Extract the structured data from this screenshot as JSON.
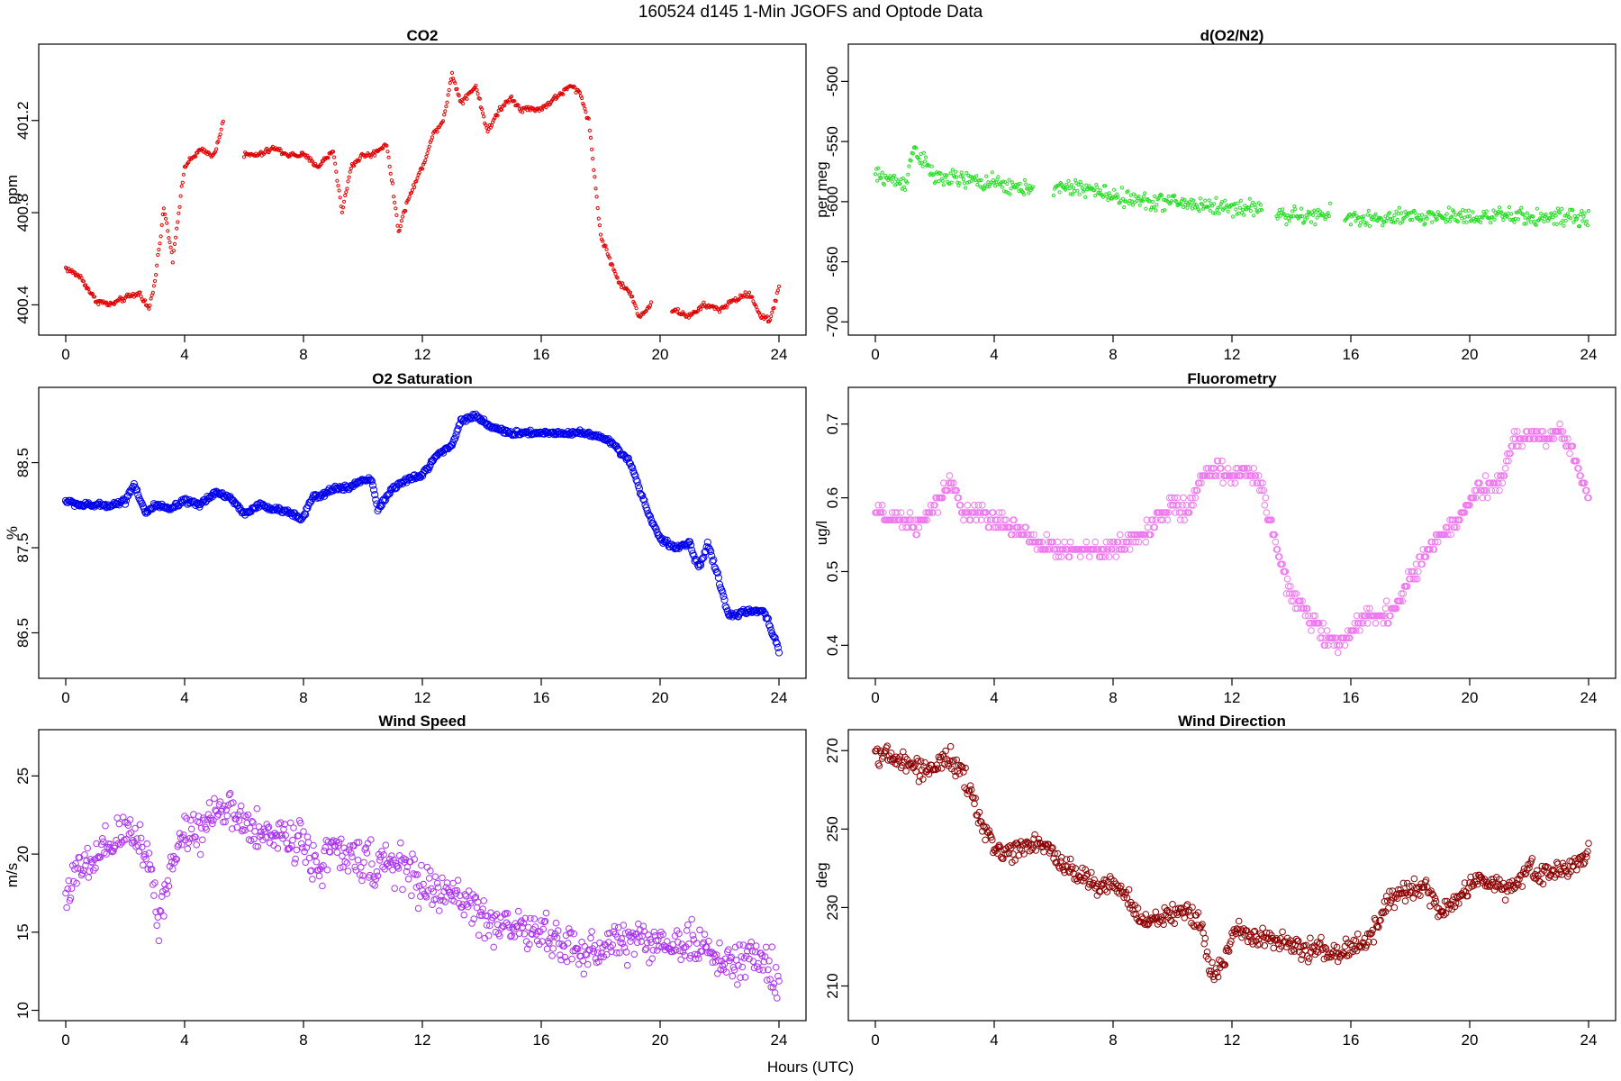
{
  "figure": {
    "title": "160524   d145   1-Min  JGOFS and Optode Data",
    "xlabel": "Hours (UTC)"
  },
  "chart_data": [
    {
      "id": "co2",
      "type": "scatter",
      "title": "CO2",
      "xlabel": "",
      "ylabel": "ppm",
      "color": "#e00000",
      "marker_size": 1.6,
      "xlim": [
        0,
        24
      ],
      "ylim": [
        400.3,
        401.5
      ],
      "xticks": [
        0,
        4,
        8,
        12,
        16,
        20,
        24
      ],
      "yticks": [
        400.4,
        400.8,
        401.2
      ],
      "gaps": [
        [
          5.3,
          6.0
        ],
        [
          19.7,
          20.4
        ]
      ],
      "series": [
        {
          "x": [
            0,
            0.5,
            1,
            1.5,
            2,
            2.5,
            2.8,
            3,
            3.3,
            3.6,
            4,
            4.5,
            5,
            5.3,
            6,
            6.5,
            7,
            7.5,
            8,
            8.5,
            9,
            9.3,
            9.6,
            10,
            10.3,
            10.8,
            11.2,
            11.5,
            12,
            12.4,
            12.7,
            13,
            13.3,
            13.8,
            14.2,
            14.6,
            15,
            15.3,
            16,
            16.5,
            17,
            17.3,
            17.6,
            18,
            18.3,
            18.6,
            19,
            19.3,
            19.7,
            20.4,
            21,
            21.5,
            22,
            22.5,
            23,
            23.4,
            23.7,
            24
          ],
          "y": [
            400.56,
            400.52,
            400.42,
            400.4,
            400.43,
            400.45,
            400.38,
            400.5,
            400.82,
            400.6,
            401.0,
            401.07,
            401.05,
            401.2,
            401.05,
            401.05,
            401.08,
            401.05,
            401.05,
            401.0,
            401.07,
            400.8,
            401.0,
            401.05,
            401.05,
            401.1,
            400.72,
            400.85,
            401.0,
            401.15,
            401.2,
            401.4,
            401.28,
            401.35,
            401.15,
            401.25,
            401.3,
            401.25,
            401.25,
            401.3,
            401.35,
            401.32,
            401.2,
            400.7,
            400.6,
            400.5,
            400.45,
            400.35,
            400.4,
            400.38,
            400.35,
            400.4,
            400.38,
            400.42,
            400.45,
            400.35,
            400.33,
            400.48
          ]
        }
      ]
    },
    {
      "id": "do2n2",
      "type": "scatter",
      "title": "d(O2/N2)",
      "xlabel": "",
      "ylabel": "per meg",
      "color": "#22dd22",
      "marker_size": 1.6,
      "xlim": [
        0,
        24
      ],
      "ylim": [
        -705,
        -475
      ],
      "xticks": [
        0,
        4,
        8,
        12,
        16,
        20,
        24
      ],
      "yticks": [
        -700,
        -650,
        -600,
        -550,
        -500
      ],
      "gaps": [
        [
          5.3,
          6.0
        ],
        [
          13.0,
          13.5
        ],
        [
          15.3,
          15.8
        ]
      ],
      "series": [
        {
          "x": [
            0,
            1,
            1.3,
            2,
            3,
            4,
            5,
            5.3,
            6,
            7,
            7.5,
            8,
            9,
            10,
            10.3,
            11,
            12,
            13,
            13.5,
            14,
            15,
            15.3,
            15.8,
            17,
            18,
            19,
            20,
            21,
            22,
            23,
            24
          ],
          "y": [
            -578,
            -585,
            -555,
            -580,
            -582,
            -585,
            -590,
            -585,
            -590,
            -588,
            -592,
            -595,
            -600,
            -600,
            -601,
            -603,
            -605,
            -605,
            -610,
            -612,
            -612,
            -610,
            -613,
            -615,
            -613,
            -612,
            -612,
            -612,
            -613,
            -613,
            -615
          ]
        }
      ]
    },
    {
      "id": "o2sat",
      "type": "scatter",
      "title": "O2 Saturation",
      "xlabel": "",
      "ylabel": "%",
      "color": "#0000ee",
      "marker_size": 3.6,
      "xlim": [
        0,
        24
      ],
      "ylim": [
        86.05,
        89.3
      ],
      "xticks": [
        0,
        4,
        8,
        12,
        16,
        20,
        24
      ],
      "yticks": [
        86.5,
        87.5,
        88.5
      ],
      "gaps": [],
      "series": [
        {
          "x": [
            0,
            0.5,
            1,
            1.5,
            2,
            2.3,
            2.7,
            3,
            3.5,
            4,
            4.5,
            5,
            5.5,
            6,
            6.5,
            7,
            7.5,
            8,
            8.3,
            8.6,
            9,
            9.5,
            10,
            10.3,
            10.5,
            11,
            11.5,
            12,
            12.5,
            13,
            13.3,
            13.8,
            14.2,
            14.8,
            15.3,
            16,
            16.5,
            17,
            17.5,
            18,
            18.5,
            19,
            19.5,
            20,
            20.5,
            21,
            21.3,
            21.6,
            22,
            22.3,
            23,
            23.5,
            24
          ],
          "y": [
            88.05,
            88.0,
            88.0,
            88.0,
            88.05,
            88.25,
            87.9,
            88.0,
            87.95,
            88.05,
            88.0,
            88.15,
            88.1,
            87.9,
            88.0,
            87.95,
            87.92,
            87.85,
            88.1,
            88.1,
            88.2,
            88.2,
            88.3,
            88.3,
            87.95,
            88.2,
            88.3,
            88.35,
            88.6,
            88.7,
            89.0,
            89.05,
            88.95,
            88.85,
            88.85,
            88.85,
            88.85,
            88.85,
            88.85,
            88.8,
            88.7,
            88.5,
            88.0,
            87.6,
            87.5,
            87.55,
            87.25,
            87.55,
            87.1,
            86.7,
            86.75,
            86.75,
            86.3
          ]
        }
      ]
    },
    {
      "id": "fluor",
      "type": "scatter",
      "title": "Fluorometry",
      "xlabel": "",
      "ylabel": "ug/l",
      "color": "#ee77ee",
      "marker_size": 3.3,
      "xlim": [
        0,
        24
      ],
      "ylim": [
        0.365,
        0.74
      ],
      "xticks": [
        0,
        4,
        8,
        12,
        16,
        20,
        24
      ],
      "yticks": [
        0.4,
        0.5,
        0.6,
        0.7
      ],
      "gaps": [],
      "series": [
        {
          "x": [
            0,
            0.5,
            1,
            1.5,
            2,
            2.5,
            2.8,
            3,
            3.5,
            4,
            4.5,
            5,
            5.5,
            6,
            6.5,
            7,
            7.5,
            8,
            8.5,
            9,
            9.5,
            10,
            10.5,
            11,
            11.5,
            12,
            12.5,
            13,
            13.5,
            14,
            14.5,
            15,
            15.5,
            16,
            16.5,
            17,
            17.5,
            18,
            18.5,
            19,
            19.5,
            20,
            20.5,
            21,
            21.5,
            22,
            22.5,
            23,
            23.5,
            24
          ],
          "y": [
            0.58,
            0.57,
            0.57,
            0.56,
            0.59,
            0.62,
            0.6,
            0.58,
            0.58,
            0.57,
            0.56,
            0.55,
            0.54,
            0.53,
            0.53,
            0.53,
            0.53,
            0.53,
            0.54,
            0.55,
            0.57,
            0.59,
            0.58,
            0.63,
            0.64,
            0.63,
            0.64,
            0.62,
            0.53,
            0.47,
            0.44,
            0.42,
            0.4,
            0.42,
            0.44,
            0.44,
            0.45,
            0.49,
            0.52,
            0.55,
            0.56,
            0.6,
            0.61,
            0.62,
            0.68,
            0.68,
            0.68,
            0.69,
            0.66,
            0.6
          ]
        }
      ]
    },
    {
      "id": "wspd",
      "type": "scatter",
      "title": "Wind Speed",
      "xlabel": "",
      "ylabel": "m/s",
      "color": "#aa33ee",
      "marker_size": 3.3,
      "xlim": [
        0,
        24
      ],
      "ylim": [
        9.8,
        27.5
      ],
      "xticks": [
        0,
        4,
        8,
        12,
        16,
        20,
        24
      ],
      "yticks": [
        10,
        15,
        20,
        25
      ],
      "gaps": [],
      "series": [
        {
          "x": [
            0,
            0.5,
            1,
            1.5,
            2,
            2.5,
            2.9,
            3.1,
            3.5,
            4,
            4.5,
            5,
            5.5,
            6,
            6.5,
            7,
            7.5,
            8,
            8.5,
            9,
            9.5,
            10,
            10.5,
            11,
            11.5,
            12,
            12.5,
            13,
            13.5,
            14,
            14.5,
            15,
            15.5,
            16,
            16.5,
            17,
            17.5,
            18,
            18.5,
            19,
            19.5,
            20,
            20.5,
            21,
            21.5,
            22,
            22.5,
            23,
            23.5,
            24
          ],
          "y": [
            17.5,
            19.0,
            19.5,
            20.5,
            21.5,
            21.0,
            19.0,
            15.5,
            19.0,
            21.5,
            21.5,
            23.0,
            22.5,
            22.0,
            21.0,
            21.5,
            21.0,
            21.0,
            19.0,
            20.5,
            19.5,
            20.0,
            19.0,
            19.5,
            19.0,
            18.0,
            17.5,
            17.5,
            17.0,
            16.0,
            15.5,
            15.5,
            15.0,
            15.0,
            14.5,
            14.0,
            13.5,
            14.0,
            14.5,
            14.5,
            14.5,
            14.5,
            14.0,
            14.5,
            14.0,
            13.0,
            13.0,
            13.5,
            13.0,
            12.0
          ]
        }
      ]
    },
    {
      "id": "wdir",
      "type": "scatter",
      "title": "Wind Direction",
      "xlabel": "",
      "ylabel": "deg",
      "color": "#8b0000",
      "marker_size": 3.3,
      "xlim": [
        0,
        24
      ],
      "ylim": [
        203,
        273.5
      ],
      "xticks": [
        0,
        4,
        8,
        12,
        16,
        20,
        24
      ],
      "yticks": [
        210,
        230,
        250,
        270
      ],
      "gaps": [],
      "series": [
        {
          "x": [
            0,
            0.5,
            1,
            1.5,
            2,
            2.5,
            3,
            3.3,
            3.6,
            4,
            4.5,
            5,
            5.5,
            6,
            6.5,
            7,
            7.5,
            8,
            8.5,
            9,
            9.5,
            10,
            10.5,
            11,
            11.3,
            11.7,
            12,
            12.5,
            13,
            13.5,
            14,
            14.5,
            15,
            15.5,
            16,
            16.5,
            17,
            17.5,
            18,
            18.5,
            19,
            19.5,
            20,
            20.5,
            21,
            21.5,
            22,
            22.5,
            23,
            23.5,
            24
          ],
          "y": [
            270,
            268,
            267,
            265,
            266,
            268,
            263,
            257,
            251,
            245,
            244,
            246,
            247,
            243,
            240,
            238,
            236,
            236,
            232,
            226,
            227,
            228,
            230,
            225,
            213,
            215,
            223,
            224,
            223,
            222,
            220,
            219,
            220,
            218,
            220,
            221,
            228,
            233,
            234,
            235,
            229,
            231,
            236,
            237,
            235,
            236,
            240,
            238,
            239,
            241,
            244
          ]
        }
      ]
    }
  ]
}
